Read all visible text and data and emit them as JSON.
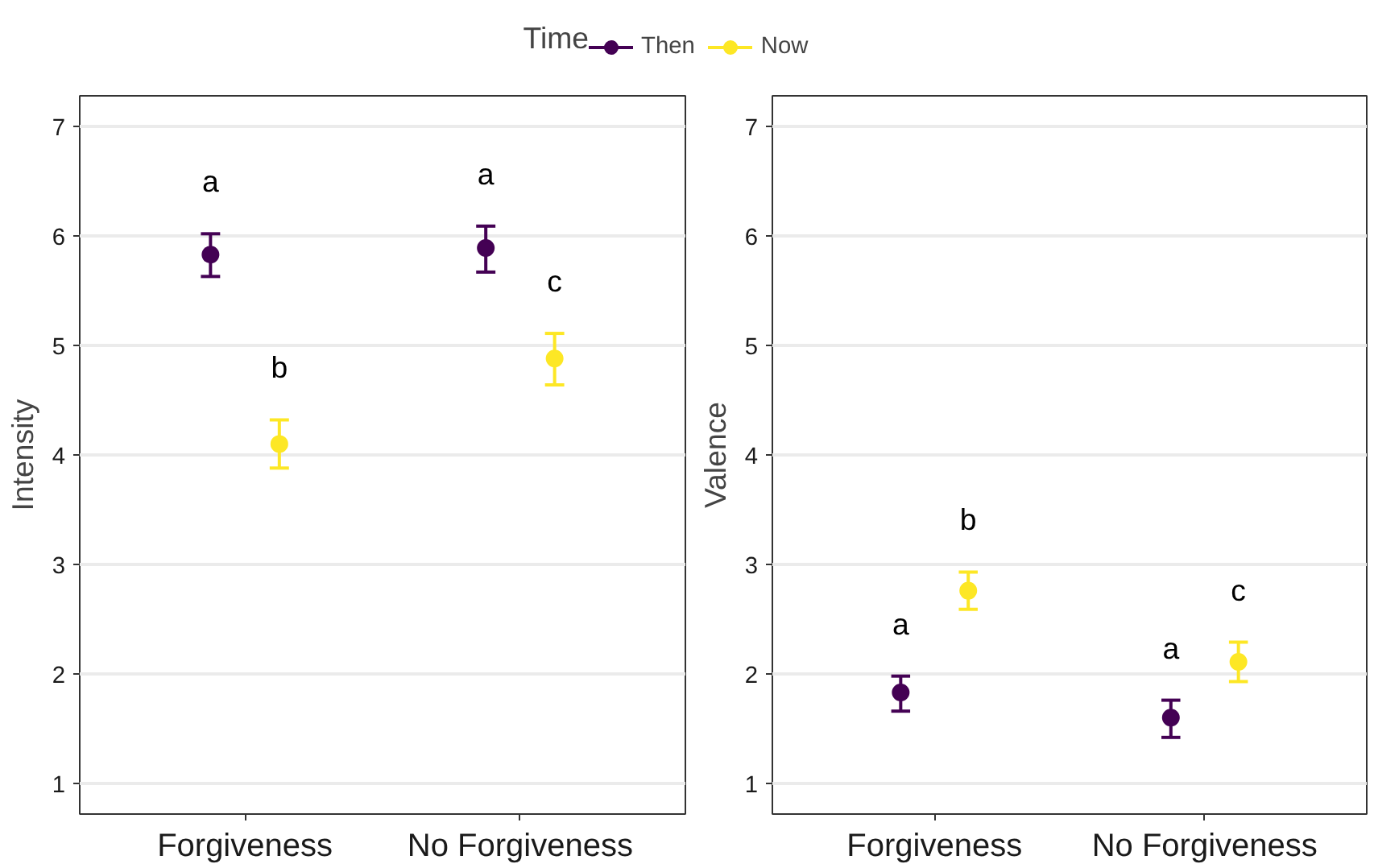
{
  "chart_data": [
    {
      "type": "scatter",
      "ylabel": "Intensity",
      "legend_title": "Time",
      "legend": "top",
      "categories": [
        "Forgiveness",
        "No Forgiveness"
      ],
      "ylim": [
        0.72,
        7.28
      ],
      "yticks": [
        1,
        2,
        3,
        4,
        5,
        6,
        7
      ],
      "grid": "y",
      "marker": "circle",
      "series": [
        {
          "name": "Then",
          "color": "#440154",
          "values": [
            5.83,
            5.89
          ],
          "errors": [
            [
              5.63,
              6.02
            ],
            [
              5.67,
              6.09
            ]
          ]
        },
        {
          "name": "Now",
          "color": "#fde725",
          "values": [
            4.1,
            4.88
          ],
          "errors": [
            [
              3.88,
              4.32
            ],
            [
              4.64,
              5.11
            ]
          ]
        }
      ],
      "annotations": [
        "a",
        "a",
        "b",
        "c"
      ]
    },
    {
      "type": "scatter",
      "ylabel": "Valence",
      "categories": [
        "Forgiveness",
        "No Forgiveness"
      ],
      "ylim": [
        0.72,
        7.28
      ],
      "yticks": [
        1,
        2,
        3,
        4,
        5,
        6,
        7
      ],
      "grid": "y",
      "marker": "circle",
      "series": [
        {
          "color": "#440154",
          "values": [
            1.83,
            1.6
          ],
          "errors": [
            [
              1.66,
              1.98
            ],
            [
              1.42,
              1.76
            ]
          ]
        },
        {
          "color": "#fde725",
          "values": [
            2.76,
            2.11
          ],
          "errors": [
            [
              2.59,
              2.93
            ],
            [
              1.93,
              2.29
            ]
          ]
        }
      ],
      "annotations": [
        "a",
        "a",
        "b",
        "c"
      ]
    }
  ]
}
